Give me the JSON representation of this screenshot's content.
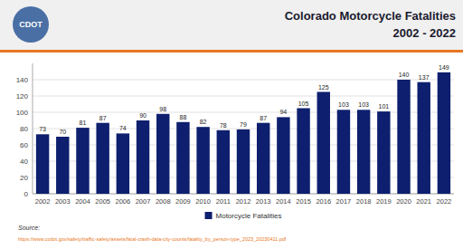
{
  "chart_data": {
    "type": "bar",
    "title": "Colorado Motorcycle Fatalities",
    "subtitle": "2002 - 2022",
    "categories": [
      "2002",
      "2003",
      "2004",
      "2005",
      "2006",
      "2007",
      "2008",
      "2009",
      "2010",
      "2011",
      "2012",
      "2013",
      "2014",
      "2015",
      "2016",
      "2017",
      "2018",
      "2019",
      "2020",
      "2021",
      "2022"
    ],
    "series": [
      {
        "name": "Motorcycle Fatalities",
        "color": "#0d1f6e",
        "values": [
          73,
          70,
          81,
          87,
          74,
          90,
          98,
          88,
          82,
          78,
          79,
          87,
          94,
          105,
          125,
          103,
          103,
          101,
          140,
          137,
          149
        ]
      }
    ],
    "ylim": [
      0,
      160
    ],
    "yticks": [
      0,
      20,
      40,
      60,
      80,
      100,
      120,
      140
    ],
    "grid": true,
    "data_labels": true,
    "legend": "bottom",
    "annotations": [
      "CDOT",
      "Source:",
      "https://www.codot.gov/safety/traffic-safety/assets/fatal-crash-data-city-counts/fatality_by_person-type_2023_20230411.pdf"
    ]
  }
}
